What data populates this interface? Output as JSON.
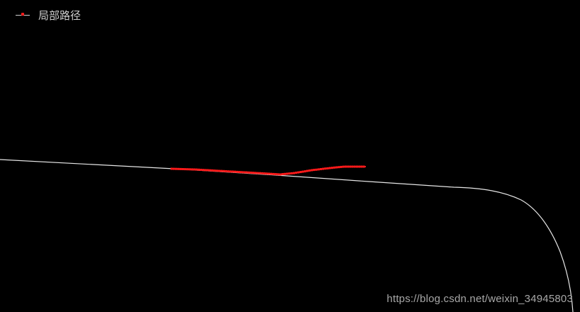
{
  "legend": {
    "label": "局部路径"
  },
  "watermark": "https://blog.csdn.net/weixin_34945803",
  "colors": {
    "background": "#000000",
    "reference_line": "#e6e6e6",
    "local_path": "#ff1a1a",
    "text": "#cfcfcf"
  }
}
